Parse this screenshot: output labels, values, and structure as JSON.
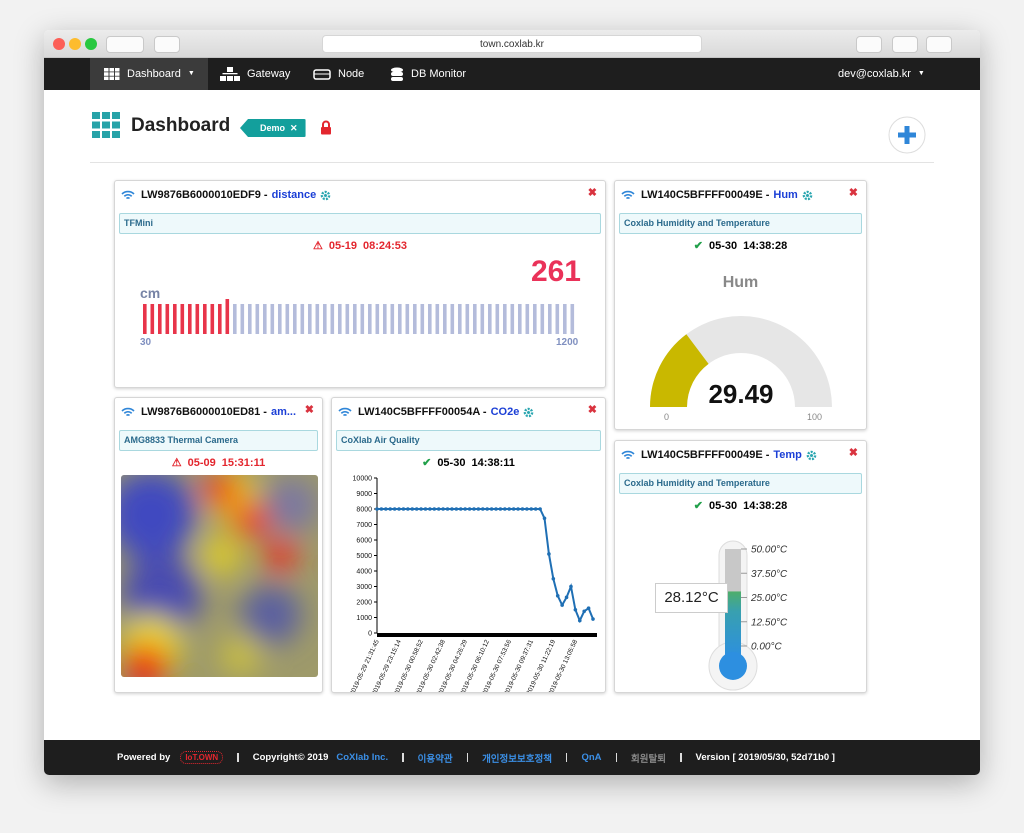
{
  "browser": {
    "url": "town.coxlab.kr"
  },
  "nav": {
    "items": [
      "Dashboard",
      "Gateway",
      "Node",
      "DB Monitor"
    ],
    "user": "dev@coxlab.kr"
  },
  "header": {
    "title": "Dashboard",
    "tag": "Demo"
  },
  "widgets": [
    {
      "device": "LW9876B6000010EDF9 -",
      "sensor": "distance",
      "label": "TFMini",
      "date": "05-19",
      "time": "08:24:53",
      "value": 261,
      "unit": "cm",
      "min": 30,
      "max": 1200
    },
    {
      "device": "LW140C5BFFFF00049E -",
      "sensor": "Hum",
      "label": "Coxlab Humidity and Temperature",
      "date": "05-30",
      "time": "14:38:28",
      "gauge_title": "Hum",
      "value": 29.49,
      "min": 0,
      "max": 100
    },
    {
      "device": "LW9876B6000010ED81 -",
      "sensor": "am...",
      "label": "AMG8833 Thermal Camera",
      "date": "05-09",
      "time": "15:31:11"
    },
    {
      "device": "LW140C5BFFFF00054A -",
      "sensor": "CO2e",
      "label": "CoXlab Air Quality",
      "date": "05-30",
      "time": "14:38:11",
      "chart_data": {
        "type": "line",
        "color": "#1f6fb4",
        "ylim": [
          0,
          10000
        ],
        "yticks": [
          0,
          1000,
          2000,
          3000,
          4000,
          5000,
          6000,
          7000,
          8000,
          9000,
          10000
        ],
        "categories": [
          "2019-05-29 21:31:45",
          null,
          null,
          null,
          null,
          "2019-05-29 23:15:14",
          null,
          null,
          null,
          null,
          "2019-05-30 00:58:52",
          null,
          null,
          null,
          null,
          "2019-05-30 02:42:38",
          null,
          null,
          null,
          null,
          "2019-05-30 04:26:29",
          null,
          null,
          null,
          null,
          "2019-05-30 06:10:12",
          null,
          null,
          null,
          null,
          "2019-05-30 07:53:56",
          null,
          null,
          null,
          null,
          "2019-05-30 09:37:31",
          null,
          null,
          null,
          null,
          "2019-05-30 11:22:19",
          null,
          null,
          null,
          null,
          "2019-05-30 13:05:58",
          null,
          null,
          null,
          null
        ],
        "values": [
          8000,
          8000,
          8000,
          8000,
          8000,
          8000,
          8000,
          8000,
          8000,
          8000,
          8000,
          8000,
          8000,
          8000,
          8000,
          8000,
          8000,
          8000,
          8000,
          8000,
          8000,
          8000,
          8000,
          8000,
          8000,
          8000,
          8000,
          8000,
          8000,
          8000,
          8000,
          8000,
          8000,
          8000,
          8000,
          8000,
          8000,
          8000,
          7400,
          5100,
          3500,
          2400,
          1800,
          2300,
          3000,
          1500,
          800,
          1400,
          1600,
          900
        ]
      }
    },
    {
      "device": "LW140C5BFFFF00049E -",
      "sensor": "Temp",
      "label": "Coxlab Humidity and Temperature",
      "date": "05-30",
      "time": "14:38:28",
      "value": {
        "value": 28.12,
        "label": "28.12°C"
      },
      "scale_ticks": [
        {
          "value": 50,
          "label": "50.00°C"
        },
        {
          "value": 37.5,
          "label": "37.50°C"
        },
        {
          "value": 25,
          "label": "25.00°C"
        },
        {
          "value": 12.5,
          "label": "12.50°C"
        },
        {
          "value": 0,
          "label": "0.00°C"
        }
      ]
    }
  ],
  "footer": {
    "powered": "Powered by",
    "logo": "IoT.OWN",
    "copyright": "Copyright© 2019",
    "company": "CoXlab Inc.",
    "links": [
      "이용약관",
      "개인정보보호정책",
      "QnA",
      "회원탈퇴"
    ],
    "version": "Version [ 2019/05/30, 52d71b0 ]"
  }
}
